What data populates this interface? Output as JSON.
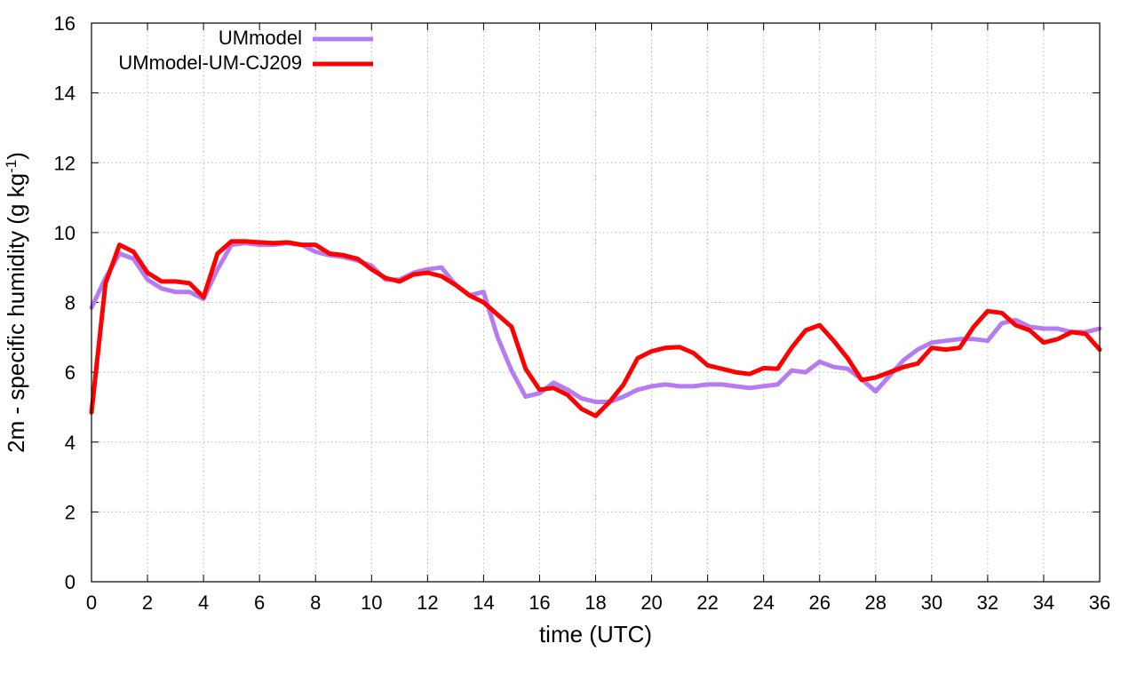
{
  "chart_data": {
    "type": "line",
    "title": "",
    "xlabel": "time (UTC)",
    "ylabel": "2m - specific humidity (g kg",
    "ylabel_sup": "-1",
    "ylabel_close": ")",
    "xlim": [
      0,
      36
    ],
    "ylim": [
      0,
      16
    ],
    "xticks": [
      "0",
      "2",
      "4",
      "6",
      "8",
      "10",
      "12",
      "14",
      "16",
      "18",
      "20",
      "22",
      "24",
      "26",
      "28",
      "30",
      "32",
      "34",
      "36"
    ],
    "yticks": [
      "0",
      "2",
      "4",
      "6",
      "8",
      "10",
      "12",
      "14",
      "16"
    ],
    "grid": true,
    "legend_position": "top-left",
    "series": [
      {
        "name": "UMmodel",
        "color": "#b57cf2",
        "x": [
          0,
          0.5,
          1,
          1.5,
          2,
          2.5,
          3,
          3.5,
          4,
          4.5,
          5,
          5.5,
          6,
          6.5,
          7,
          7.5,
          8,
          8.5,
          9,
          9.5,
          10,
          10.5,
          11,
          11.5,
          12,
          12.5,
          13,
          13.5,
          14,
          14.5,
          15,
          15.5,
          16,
          16.5,
          17,
          17.5,
          18,
          18.5,
          19,
          19.5,
          20,
          20.5,
          21,
          21.5,
          22,
          22.5,
          23,
          23.5,
          24,
          24.5,
          25,
          25.5,
          26,
          26.5,
          27,
          27.5,
          28,
          28.5,
          29,
          29.5,
          30,
          30.5,
          31,
          31.5,
          32,
          32.5,
          33,
          33.5,
          34,
          34.5,
          35,
          35.5,
          36
        ],
        "values": [
          7.85,
          8.7,
          9.4,
          9.25,
          8.65,
          8.4,
          8.3,
          8.3,
          8.1,
          8.95,
          9.65,
          9.7,
          9.65,
          9.65,
          9.7,
          9.65,
          9.45,
          9.35,
          9.3,
          9.2,
          9.05,
          8.65,
          8.65,
          8.85,
          8.95,
          9.0,
          8.5,
          8.2,
          8.3,
          7.0,
          6.05,
          5.3,
          5.4,
          5.7,
          5.5,
          5.25,
          5.15,
          5.15,
          5.3,
          5.5,
          5.6,
          5.65,
          5.6,
          5.6,
          5.65,
          5.65,
          5.6,
          5.55,
          5.6,
          5.65,
          6.05,
          6.0,
          6.3,
          6.15,
          6.1,
          5.8,
          5.45,
          5.9,
          6.35,
          6.65,
          6.85,
          6.9,
          6.95,
          6.95,
          6.9,
          7.4,
          7.5,
          7.3,
          7.25,
          7.25,
          7.15,
          7.15,
          7.25
        ]
      },
      {
        "name": "UMmodel-UM-CJ209",
        "color": "#ff0000",
        "x": [
          0,
          0.5,
          1,
          1.5,
          2,
          2.5,
          3,
          3.5,
          4,
          4.5,
          5,
          5.5,
          6,
          6.5,
          7,
          7.5,
          8,
          8.5,
          9,
          9.5,
          10,
          10.5,
          11,
          11.5,
          12,
          12.5,
          13,
          13.5,
          14,
          14.5,
          15,
          15.5,
          16,
          16.5,
          17,
          17.5,
          18,
          18.5,
          19,
          19.5,
          20,
          20.5,
          21,
          21.5,
          22,
          22.5,
          23,
          23.5,
          24,
          24.5,
          25,
          25.5,
          26,
          26.5,
          27,
          27.5,
          28,
          28.5,
          29,
          29.5,
          30,
          30.5,
          31,
          31.5,
          32,
          32.5,
          33,
          33.5,
          34,
          34.5,
          35,
          35.5,
          36
        ],
        "values": [
          4.85,
          8.55,
          9.65,
          9.45,
          8.85,
          8.6,
          8.6,
          8.55,
          8.15,
          9.4,
          9.75,
          9.75,
          9.72,
          9.7,
          9.72,
          9.65,
          9.65,
          9.4,
          9.35,
          9.25,
          8.95,
          8.7,
          8.6,
          8.8,
          8.85,
          8.75,
          8.5,
          8.2,
          8.0,
          7.65,
          7.3,
          6.1,
          5.5,
          5.55,
          5.35,
          4.95,
          4.75,
          5.15,
          5.65,
          6.4,
          6.6,
          6.7,
          6.72,
          6.55,
          6.2,
          6.1,
          6.0,
          5.95,
          6.12,
          6.1,
          6.7,
          7.2,
          7.35,
          6.9,
          6.4,
          5.78,
          5.85,
          6.0,
          6.15,
          6.25,
          6.7,
          6.65,
          6.7,
          7.3,
          7.75,
          7.7,
          7.35,
          7.2,
          6.85,
          6.95,
          7.15,
          7.1,
          6.65
        ]
      }
    ]
  }
}
